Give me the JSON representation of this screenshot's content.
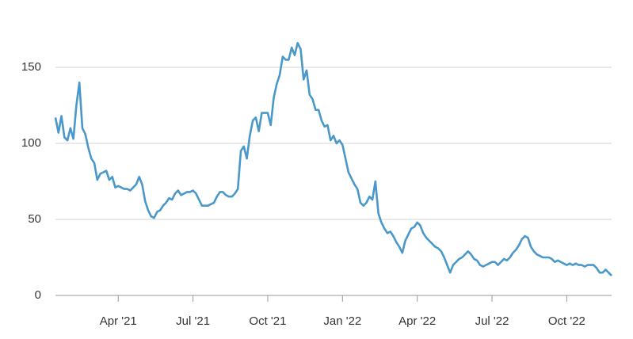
{
  "chart_data": {
    "type": "line",
    "color": "#4a98c9",
    "grid": true,
    "xlim": [
      2021.04,
      2022.9
    ],
    "xticks": [
      {
        "value": 2021.25,
        "label": "Apr '21"
      },
      {
        "value": 2021.5,
        "label": "Jul '21"
      },
      {
        "value": 2021.75,
        "label": "Oct '21"
      },
      {
        "value": 2022.0,
        "label": "Jan '22"
      },
      {
        "value": 2022.25,
        "label": "Apr '22"
      },
      {
        "value": 2022.5,
        "label": "Jul '22"
      },
      {
        "value": 2022.75,
        "label": "Oct '22"
      }
    ],
    "ylim": [
      0,
      175
    ],
    "yticks": [
      0,
      50,
      100,
      150
    ],
    "x": [
      2021.04,
      2021.05,
      2021.06,
      2021.07,
      2021.08,
      2021.09,
      2021.1,
      2021.11,
      2021.12,
      2021.13,
      2021.14,
      2021.15,
      2021.16,
      2021.17,
      2021.18,
      2021.19,
      2021.2,
      2021.21,
      2021.22,
      2021.23,
      2021.24,
      2021.25,
      2021.26,
      2021.27,
      2021.28,
      2021.29,
      2021.3,
      2021.31,
      2021.32,
      2021.33,
      2021.34,
      2021.35,
      2021.36,
      2021.37,
      2021.38,
      2021.39,
      2021.4,
      2021.41,
      2021.42,
      2021.43,
      2021.44,
      2021.45,
      2021.46,
      2021.47,
      2021.48,
      2021.49,
      2021.5,
      2021.51,
      2021.52,
      2021.53,
      2021.54,
      2021.55,
      2021.56,
      2021.57,
      2021.58,
      2021.59,
      2021.6,
      2021.61,
      2021.62,
      2021.63,
      2021.64,
      2021.65,
      2021.66,
      2021.67,
      2021.68,
      2021.69,
      2021.7,
      2021.71,
      2021.72,
      2021.73,
      2021.74,
      2021.75,
      2021.76,
      2021.77,
      2021.78,
      2021.79,
      2021.8,
      2021.81,
      2021.82,
      2021.83,
      2021.84,
      2021.85,
      2021.86,
      2021.87,
      2021.88,
      2021.89,
      2021.9,
      2021.91,
      2021.92,
      2021.93,
      2021.94,
      2021.95,
      2021.96,
      2021.97,
      2021.98,
      2021.99,
      2022.0,
      2022.01,
      2022.02,
      2022.03,
      2022.04,
      2022.05,
      2022.06,
      2022.07,
      2022.08,
      2022.09,
      2022.1,
      2022.11,
      2022.12,
      2022.13,
      2022.14,
      2022.15,
      2022.16,
      2022.17,
      2022.18,
      2022.19,
      2022.2,
      2022.21,
      2022.22,
      2022.23,
      2022.24,
      2022.25,
      2022.26,
      2022.27,
      2022.28,
      2022.29,
      2022.3,
      2022.31,
      2022.32,
      2022.33,
      2022.34,
      2022.35,
      2022.36,
      2022.37,
      2022.38,
      2022.39,
      2022.4,
      2022.41,
      2022.42,
      2022.43,
      2022.44,
      2022.45,
      2022.46,
      2022.47,
      2022.48,
      2022.49,
      2022.5,
      2022.51,
      2022.52,
      2022.53,
      2022.54,
      2022.55,
      2022.56,
      2022.57,
      2022.58,
      2022.59,
      2022.6,
      2022.61,
      2022.62,
      2022.63,
      2022.64,
      2022.65,
      2022.66,
      2022.67,
      2022.68,
      2022.69,
      2022.7,
      2022.71,
      2022.72,
      2022.73,
      2022.74,
      2022.75,
      2022.76,
      2022.77,
      2022.78,
      2022.79,
      2022.8,
      2022.81,
      2022.82,
      2022.83,
      2022.84,
      2022.85,
      2022.86,
      2022.87,
      2022.88,
      2022.89,
      2022.9
    ],
    "values": [
      117,
      107,
      118,
      104,
      102,
      110,
      103,
      125,
      140,
      110,
      106,
      97,
      90,
      87,
      76,
      80,
      81,
      82,
      76,
      78,
      71,
      72,
      71,
      70,
      70,
      69,
      71,
      73,
      78,
      73,
      62,
      56,
      52,
      51,
      55,
      56,
      59,
      61,
      64,
      63,
      67,
      69,
      66,
      67,
      68,
      68,
      69,
      67,
      63,
      59,
      59,
      59,
      60,
      61,
      65,
      68,
      68,
      66,
      65,
      65,
      67,
      70,
      95,
      98,
      90,
      105,
      115,
      117,
      108,
      120,
      120,
      120,
      112,
      130,
      139,
      145,
      157,
      155,
      155,
      163,
      158,
      166,
      162,
      142,
      148,
      132,
      129,
      122,
      122,
      115,
      111,
      112,
      102,
      105,
      100,
      102,
      99,
      90,
      81,
      77,
      73,
      70,
      61,
      59,
      61,
      65,
      63,
      75,
      54,
      48,
      44,
      41,
      42,
      39,
      35,
      32,
      28,
      36,
      40,
      44,
      45,
      48,
      46,
      41,
      38,
      36,
      34,
      32,
      31,
      29,
      25,
      20,
      15,
      20,
      22,
      24,
      25,
      27,
      29,
      27,
      24,
      23,
      20,
      19,
      20,
      21,
      22,
      22,
      20,
      22,
      24,
      23,
      25,
      28,
      30,
      33,
      37,
      39,
      38,
      32,
      29,
      27,
      26,
      25,
      25,
      25,
      24,
      22,
      23,
      22,
      21,
      20,
      21,
      20,
      21,
      20,
      20,
      19,
      20,
      20,
      20,
      18,
      15,
      15,
      17,
      15,
      13
    ]
  }
}
